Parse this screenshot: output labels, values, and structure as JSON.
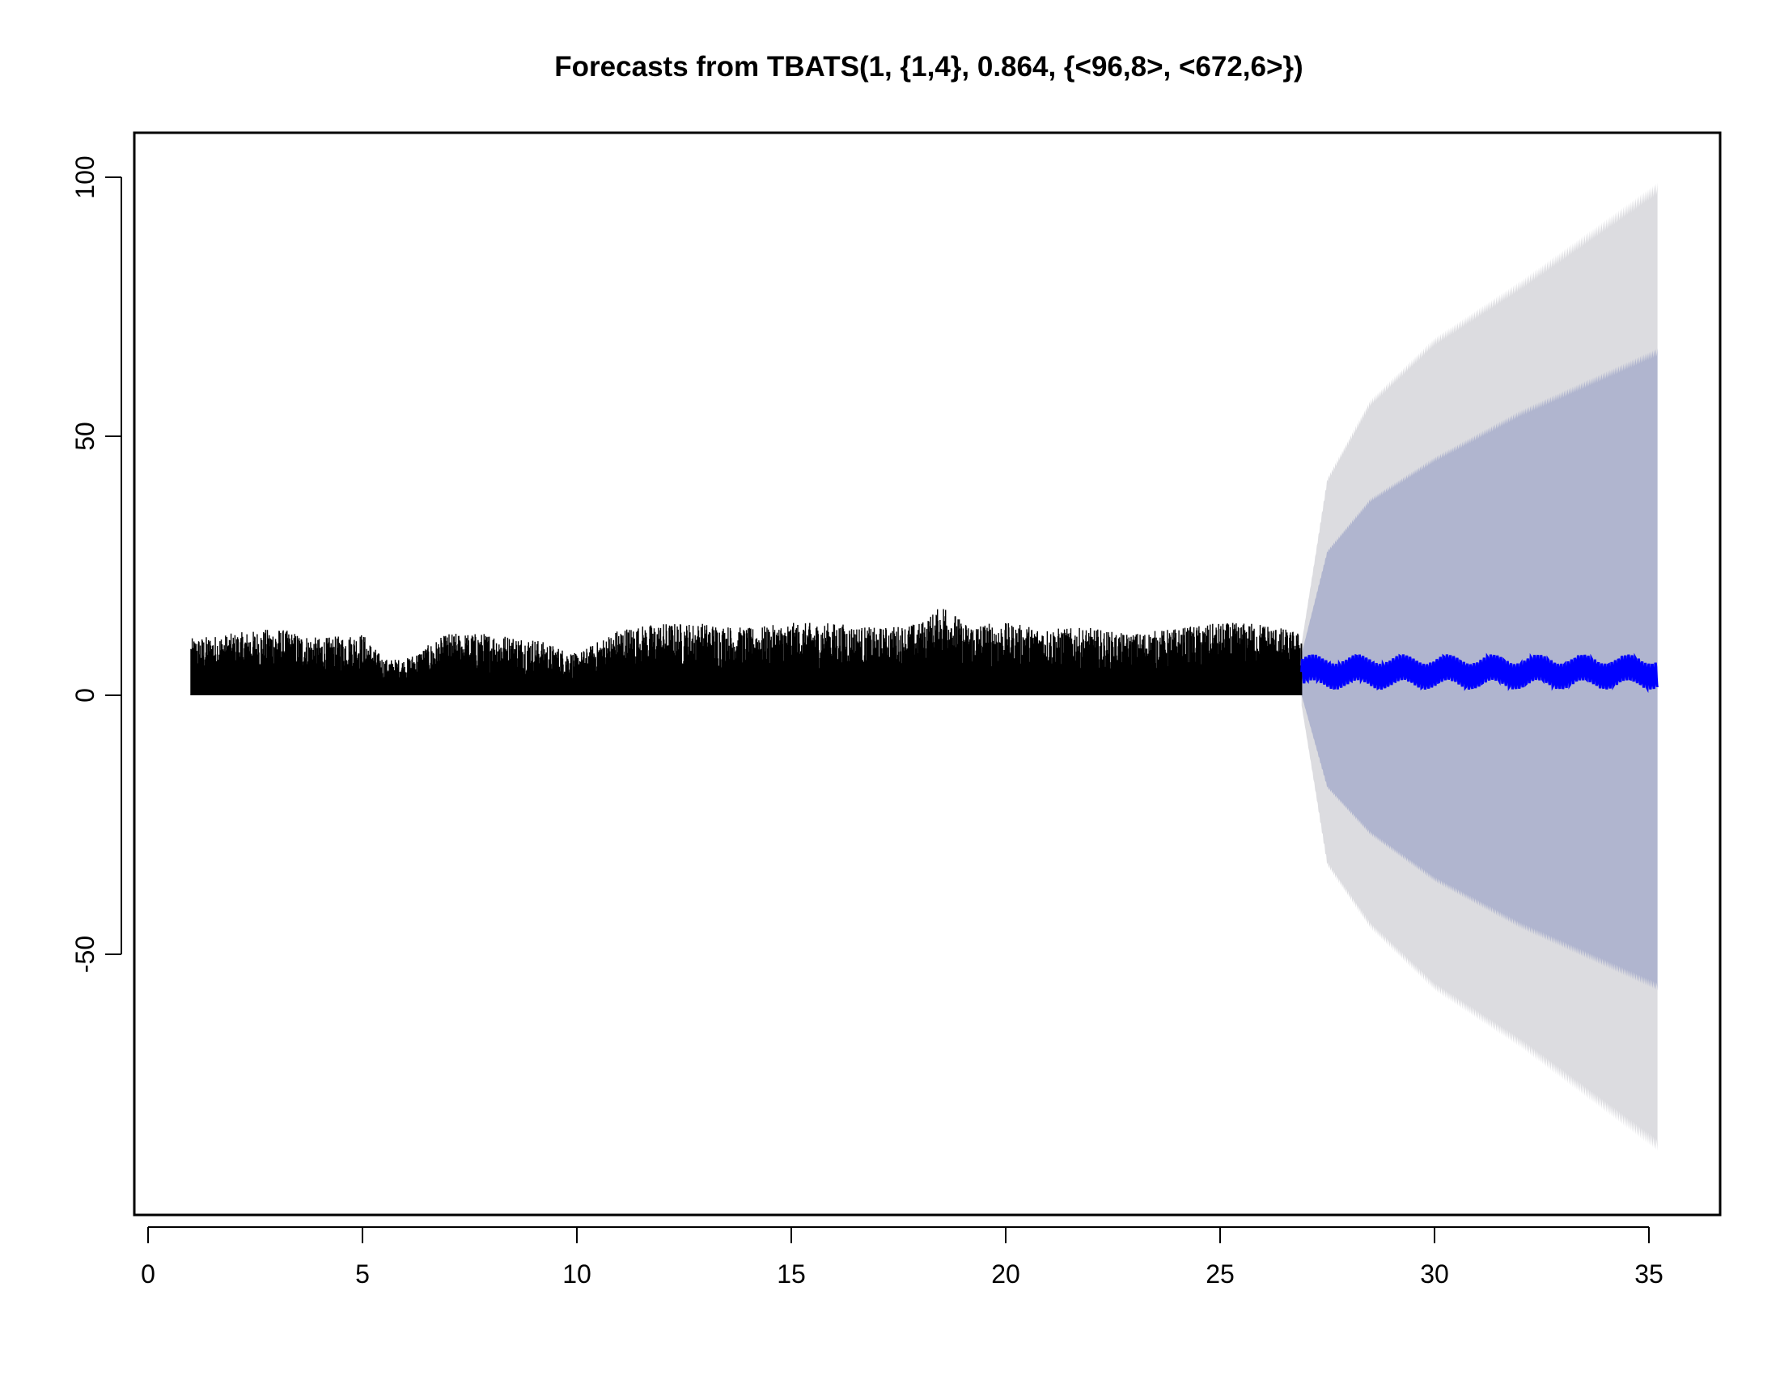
{
  "chart_data": {
    "type": "area",
    "title": "Forecasts from TBATS(1, {1,4}, 0.864, {<96,8>, <672,6>})",
    "xlabel": "",
    "ylabel": "",
    "xlim": [
      0,
      36
    ],
    "ylim": [
      -95,
      110
    ],
    "x_ticks": [
      0,
      5,
      10,
      15,
      20,
      25,
      30,
      35
    ],
    "x_tick_labels": [
      "0",
      "5",
      "10",
      "15",
      "20",
      "25",
      "30",
      "35"
    ],
    "y_ticks": [
      -50,
      0,
      50,
      100
    ],
    "y_tick_labels": [
      "-50",
      "0",
      "50",
      "100"
    ],
    "grid": false,
    "legend": "none",
    "colors": {
      "observed": "#000000",
      "forecast_mean": "#0000ff",
      "interval_80": "#b0b5cf",
      "interval_95": "#dcdce0",
      "frame": "#000000"
    },
    "series": [
      {
        "role": "observed",
        "x_start": 1.0,
        "x_end": 26.9,
        "y_min": 0,
        "envelope_x": [
          1,
          2,
          3,
          4,
          5,
          5.5,
          6,
          7,
          8,
          9,
          10,
          11,
          12,
          13,
          14,
          15,
          16,
          17,
          18,
          18.6,
          19,
          20,
          21,
          22,
          22.7,
          23,
          24,
          25,
          26,
          26.9
        ],
        "envelope_y_max": [
          11,
          12,
          13,
          11,
          12,
          7,
          7,
          12,
          12,
          11,
          8,
          13,
          14,
          14,
          13,
          14,
          14,
          13,
          14,
          18,
          14,
          14,
          13,
          13,
          12,
          12,
          13,
          14,
          14,
          12
        ]
      },
      {
        "role": "forecast_mean",
        "x_start": 26.9,
        "x_end": 35.2,
        "mean": 4.5,
        "amplitude": 2.5
      },
      {
        "role": "interval_80",
        "x": [
          26.9,
          27.5,
          28.5,
          30,
          32,
          35.2
        ],
        "upper": [
          8,
          28,
          38,
          46,
          55,
          67
        ],
        "lower": [
          0,
          -18,
          -27,
          -36,
          -45,
          -57
        ]
      },
      {
        "role": "interval_95",
        "x": [
          26.9,
          27.5,
          28.5,
          30,
          32,
          35.2
        ],
        "upper": [
          10,
          42,
          57,
          69,
          80,
          99
        ],
        "lower": [
          -2,
          -33,
          -45,
          -57,
          -68,
          -88
        ]
      }
    ]
  }
}
